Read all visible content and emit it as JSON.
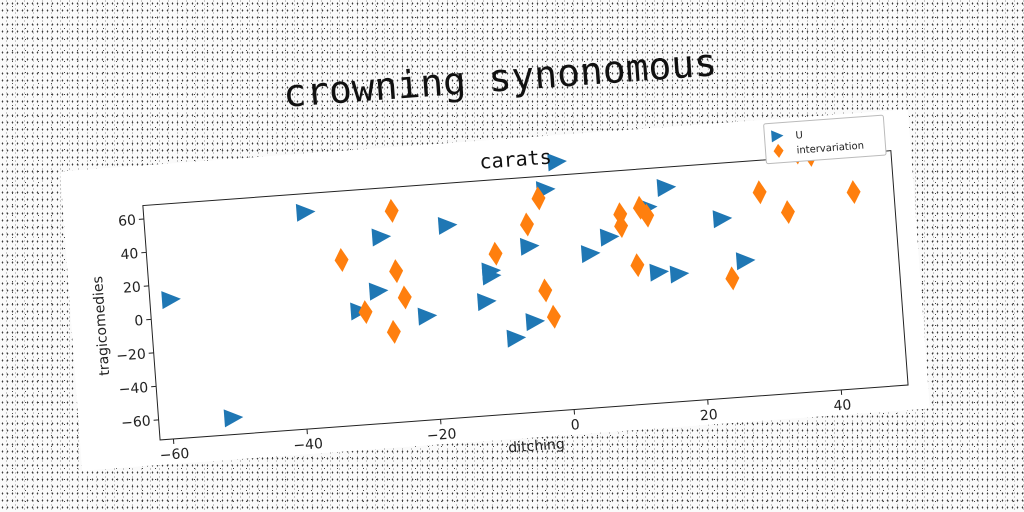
{
  "suptitle": "crowning synonomous",
  "chart_data": {
    "type": "scatter",
    "title": "carats",
    "xlabel": "ditching",
    "ylabel": "tragicomedies",
    "xlim": [
      -62,
      50
    ],
    "ylim": [
      -72,
      68
    ],
    "xticks": [
      -60,
      -40,
      -20,
      0,
      20,
      40
    ],
    "yticks": [
      -60,
      -40,
      -20,
      0,
      20,
      40,
      60
    ],
    "legend_position": "top-right",
    "grid": false,
    "series": [
      {
        "name": "U",
        "marker": "triangle-right",
        "color": "#1f77b4",
        "points": [
          [
            -59,
            11
          ],
          [
            -51,
            -62
          ],
          [
            -38,
            57
          ],
          [
            -31,
            -4
          ],
          [
            -28,
            7
          ],
          [
            -27,
            39
          ],
          [
            -21,
            -10
          ],
          [
            -17,
            43
          ],
          [
            -12,
            -4
          ],
          [
            -11,
            14
          ],
          [
            -11,
            11
          ],
          [
            -8,
            -27
          ],
          [
            -5,
            -18
          ],
          [
            -5,
            27
          ],
          [
            -2,
            60
          ],
          [
            0,
            76
          ],
          [
            4,
            20
          ],
          [
            7,
            29
          ],
          [
            13,
            45
          ],
          [
            14,
            6
          ],
          [
            16,
            56
          ],
          [
            17,
            4
          ],
          [
            24,
            35
          ],
          [
            27,
            9
          ]
        ]
      },
      {
        "name": "intervariation",
        "marker": "thin-diamond",
        "color": "#ff7f0e",
        "points": [
          [
            -33,
            27
          ],
          [
            -30,
            -5
          ],
          [
            -26,
            -18
          ],
          [
            -25,
            54
          ],
          [
            -25,
            18
          ],
          [
            -24,
            2
          ],
          [
            -10,
            24
          ],
          [
            -5,
            40
          ],
          [
            -3,
            55
          ],
          [
            -3,
            0
          ],
          [
            -2,
            -16
          ],
          [
            9,
            42
          ],
          [
            9,
            35
          ],
          [
            11,
            11
          ],
          [
            12,
            45
          ],
          [
            13,
            40
          ],
          [
            25,
            -1
          ],
          [
            30,
            49
          ],
          [
            34,
            36
          ],
          [
            36,
            71
          ],
          [
            38,
            69
          ],
          [
            44,
            45
          ]
        ]
      }
    ]
  }
}
